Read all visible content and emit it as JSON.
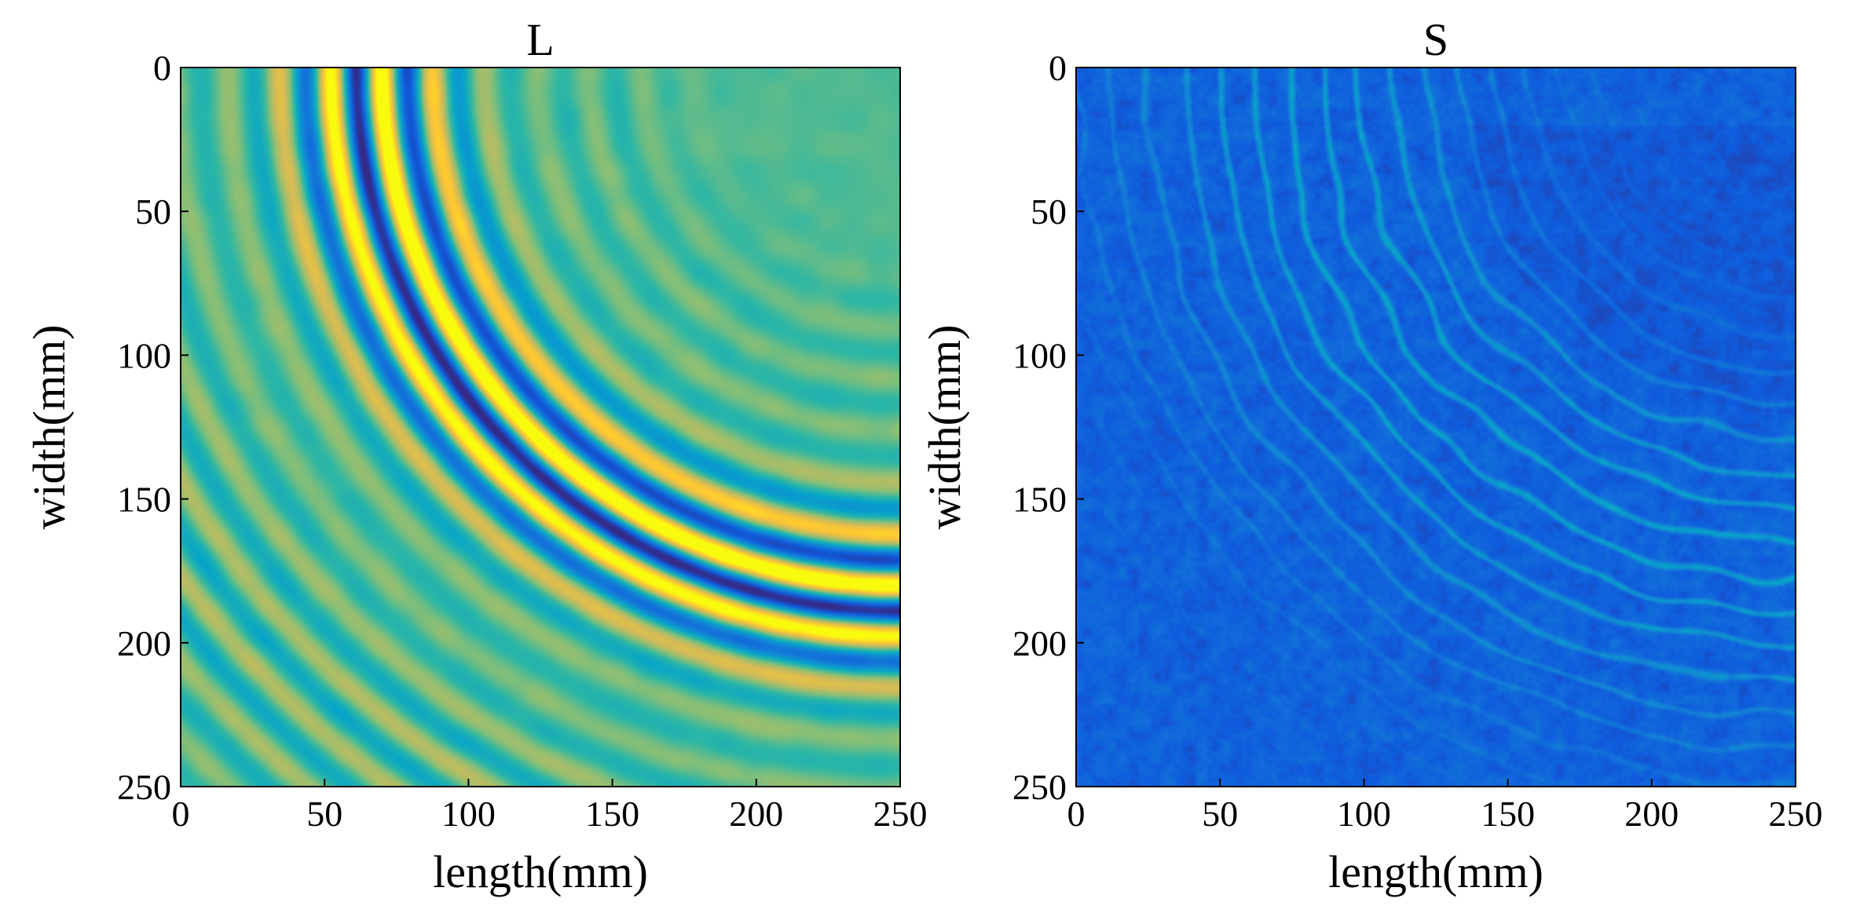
{
  "chart_data": [
    {
      "type": "heatmap",
      "title": "L",
      "xlabel": "length(mm)",
      "ylabel": "width(mm)",
      "xlim": [
        0,
        250
      ],
      "ylim": [
        0,
        250
      ],
      "y_direction": "reversed",
      "xticks": [
        0,
        50,
        100,
        150,
        200,
        250
      ],
      "yticks": [
        0,
        50,
        100,
        150,
        200,
        250
      ],
      "colormap": "parula",
      "colormap_stops": [
        "#352a87",
        "#0f5cdd",
        "#1481d6",
        "#06a4ca",
        "#2eb7a4",
        "#87bf77",
        "#d1bb59",
        "#fec832",
        "#f9fb0e"
      ],
      "pattern": {
        "description_values": "concentric circular wavefronts",
        "center_mm": [
          250,
          0
        ],
        "peak_radius_mm": 185,
        "ring_spacing_mm": 18,
        "ring_count": 12,
        "background_level": 0.55
      }
    },
    {
      "type": "heatmap",
      "title": "S",
      "xlabel": "length(mm)",
      "ylabel": "width(mm)",
      "xlim": [
        0,
        250
      ],
      "ylim": [
        0,
        250
      ],
      "y_direction": "reversed",
      "xticks": [
        0,
        50,
        100,
        150,
        200,
        250
      ],
      "yticks": [
        0,
        50,
        100,
        150,
        200,
        250
      ],
      "colormap": "parula",
      "colormap_stops": [
        "#352a87",
        "#0f5cdd",
        "#1481d6",
        "#06a4ca",
        "#2eb7a4",
        "#87bf77",
        "#d1bb59",
        "#fec832",
        "#f9fb0e"
      ],
      "pattern": {
        "description_values": "noisy concentric arcs, low magnitude",
        "center_mm": [
          250,
          0
        ],
        "ring_spacing_mm": 12,
        "background_level": 0.08
      }
    }
  ]
}
